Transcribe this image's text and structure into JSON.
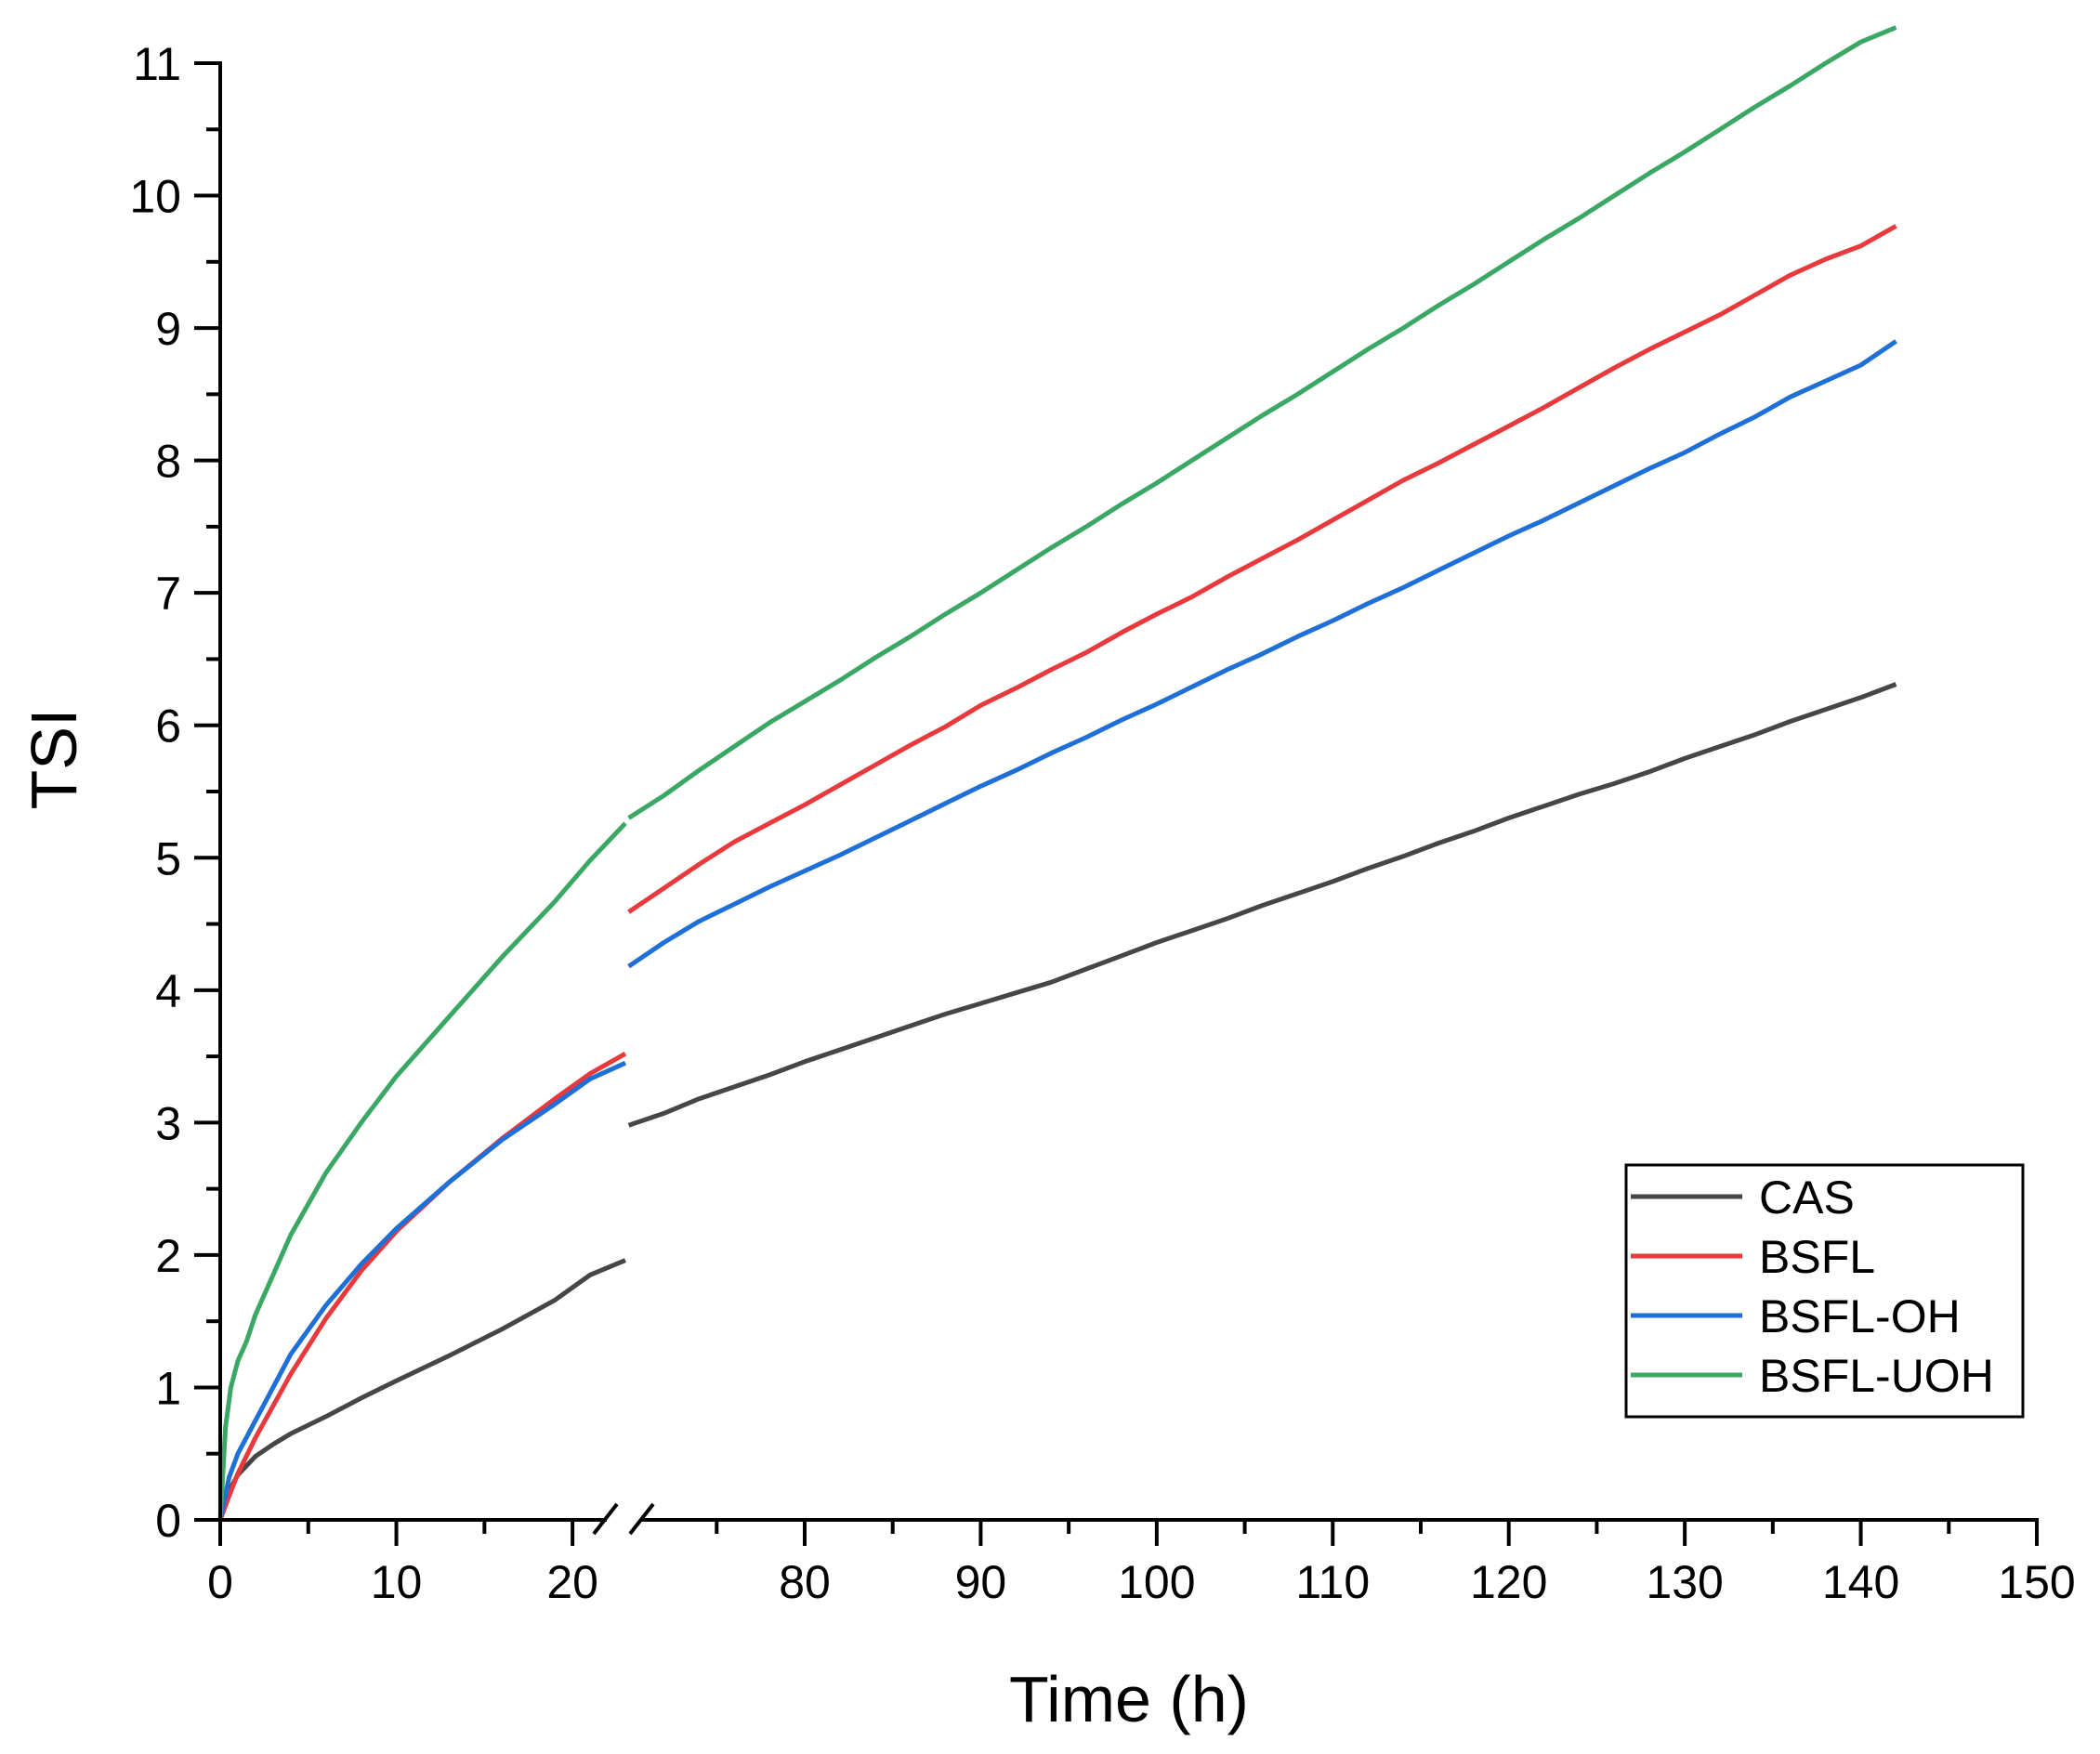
{
  "chart_data": {
    "type": "line",
    "title": "",
    "xlabel": "Time (h)",
    "ylabel": "TSI",
    "xlim": [
      0,
      150
    ],
    "ylim": [
      0,
      11
    ],
    "axis_break": {
      "from": 23,
      "to": 70
    },
    "x_ticks": [
      0,
      10,
      20,
      80,
      90,
      100,
      110,
      120,
      130,
      140,
      150
    ],
    "x_tick_labels": [
      "0",
      "10",
      "20",
      "80",
      "90",
      "100",
      "110",
      "120",
      "130",
      "140",
      "150"
    ],
    "y_ticks": [
      0,
      1,
      2,
      3,
      4,
      5,
      6,
      7,
      8,
      9,
      10,
      11
    ],
    "y_tick_labels": [
      "0",
      "1",
      "2",
      "3",
      "4",
      "5",
      "6",
      "7",
      "8",
      "9",
      "10",
      "11"
    ],
    "legend_position": "bottom-right",
    "grid": false,
    "series": [
      {
        "name": "CAS",
        "color": "#464646",
        "x": [
          0,
          0.5,
          1,
          2,
          3,
          4,
          6,
          8,
          10,
          13,
          16,
          19,
          21,
          23,
          70,
          72,
          74,
          76,
          78,
          80,
          82,
          84,
          86,
          88,
          90,
          92,
          94,
          96,
          98,
          100,
          102,
          104,
          106,
          108,
          110,
          112,
          114,
          116,
          118,
          120,
          122,
          124,
          126,
          128,
          130,
          132,
          134,
          136,
          138,
          140,
          142
        ],
        "values": [
          0,
          0.22,
          0.34,
          0.48,
          0.57,
          0.65,
          0.78,
          0.92,
          1.05,
          1.24,
          1.44,
          1.66,
          1.85,
          1.96,
          2.98,
          3.07,
          3.18,
          3.27,
          3.36,
          3.46,
          3.55,
          3.64,
          3.73,
          3.82,
          3.9,
          3.98,
          4.06,
          4.16,
          4.26,
          4.36,
          4.45,
          4.54,
          4.64,
          4.73,
          4.82,
          4.92,
          5.01,
          5.11,
          5.2,
          5.3,
          5.39,
          5.48,
          5.56,
          5.65,
          5.75,
          5.84,
          5.93,
          6.03,
          6.12,
          6.21,
          6.31
        ]
      },
      {
        "name": "BSFL",
        "color": "#e8393c",
        "x": [
          0,
          0.5,
          1,
          2,
          4,
          6,
          8,
          10,
          13,
          16,
          19,
          21,
          23,
          70,
          72,
          74,
          76,
          78,
          80,
          82,
          84,
          86,
          88,
          90,
          92,
          94,
          96,
          98,
          100,
          102,
          104,
          106,
          108,
          110,
          112,
          114,
          116,
          118,
          120,
          122,
          124,
          126,
          128,
          130,
          132,
          134,
          136,
          138,
          140,
          142
        ],
        "values": [
          0,
          0.18,
          0.35,
          0.62,
          1.1,
          1.52,
          1.88,
          2.18,
          2.55,
          2.88,
          3.18,
          3.37,
          3.52,
          4.59,
          4.77,
          4.95,
          5.12,
          5.26,
          5.4,
          5.55,
          5.7,
          5.85,
          5.99,
          6.15,
          6.28,
          6.42,
          6.55,
          6.7,
          6.84,
          6.97,
          7.12,
          7.26,
          7.4,
          7.55,
          7.7,
          7.85,
          7.98,
          8.12,
          8.26,
          8.4,
          8.55,
          8.7,
          8.84,
          8.97,
          9.1,
          9.25,
          9.4,
          9.52,
          9.62,
          9.77
        ]
      },
      {
        "name": "BSFL-OH",
        "color": "#1f6fd8",
        "x": [
          0,
          0.5,
          1,
          2,
          4,
          6,
          8,
          10,
          13,
          16,
          19,
          21,
          23,
          70,
          72,
          74,
          76,
          78,
          80,
          82,
          84,
          86,
          88,
          90,
          92,
          94,
          96,
          98,
          100,
          102,
          104,
          106,
          108,
          110,
          112,
          114,
          116,
          118,
          120,
          122,
          124,
          126,
          128,
          130,
          132,
          134,
          136,
          138,
          140,
          142
        ],
        "values": [
          0,
          0.32,
          0.5,
          0.75,
          1.25,
          1.62,
          1.93,
          2.2,
          2.55,
          2.87,
          3.14,
          3.33,
          3.45,
          4.18,
          4.36,
          4.52,
          4.65,
          4.78,
          4.9,
          5.02,
          5.15,
          5.28,
          5.41,
          5.54,
          5.66,
          5.79,
          5.91,
          6.04,
          6.16,
          6.29,
          6.42,
          6.54,
          6.67,
          6.79,
          6.92,
          7.04,
          7.17,
          7.3,
          7.43,
          7.55,
          7.68,
          7.81,
          7.94,
          8.06,
          8.2,
          8.33,
          8.48,
          8.6,
          8.72,
          8.9
        ]
      },
      {
        "name": "BSFL-UOH",
        "color": "#3aa864",
        "x": [
          0,
          0.3,
          0.6,
          1,
          1.5,
          2,
          3,
          4,
          6,
          8,
          10,
          13,
          16,
          19,
          21,
          23,
          70,
          72,
          74,
          76,
          78,
          80,
          82,
          84,
          86,
          88,
          90,
          92,
          94,
          96,
          98,
          100,
          102,
          104,
          106,
          108,
          110,
          112,
          114,
          116,
          118,
          120,
          122,
          124,
          126,
          128,
          130,
          132,
          134,
          136,
          138,
          140,
          142
        ],
        "values": [
          0,
          0.7,
          1.0,
          1.2,
          1.35,
          1.55,
          1.85,
          2.15,
          2.62,
          3.0,
          3.35,
          3.8,
          4.25,
          4.67,
          4.98,
          5.26,
          5.3,
          5.47,
          5.66,
          5.84,
          6.02,
          6.18,
          6.34,
          6.51,
          6.67,
          6.84,
          7.0,
          7.17,
          7.34,
          7.5,
          7.67,
          7.83,
          8.0,
          8.17,
          8.34,
          8.5,
          8.67,
          8.84,
          9.0,
          9.17,
          9.33,
          9.5,
          9.67,
          9.83,
          10.0,
          10.17,
          10.33,
          10.5,
          10.67,
          10.83,
          11.0,
          11.16,
          11.27
        ]
      }
    ]
  }
}
